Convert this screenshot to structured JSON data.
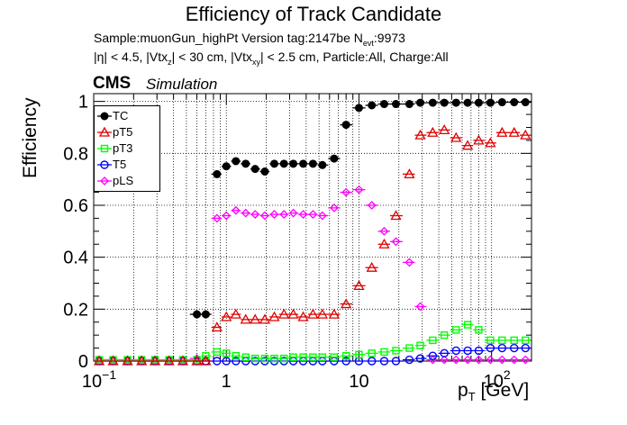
{
  "chart_data": {
    "type": "scatter",
    "title": "Efficiency of Track Candidate",
    "info_line1": "Sample:muonGun_highPt   Version tag:2147be  N",
    "info_line1_sub": "evt",
    "info_line1_tail": ":9973",
    "info_line2_parts": [
      "|η| < 4.5, |Vtx",
      "z",
      "| < 30 cm, |Vtx",
      "xy",
      "| < 2.5 cm, Particle:All, Charge:All"
    ],
    "cms_label": "CMS",
    "sim_label": "Simulation",
    "ylabel": "Efficiency",
    "xlabel_main": "p",
    "xlabel_sub": "T",
    "xlabel_tail": " [GeV]",
    "xscale": "log",
    "xlim": [
      0.1,
      200
    ],
    "ylim": [
      0,
      1.03
    ],
    "grid": true,
    "legend_placement": "top-left",
    "x_ticks": [
      {
        "value": 0.1,
        "label": "10",
        "sup": "−1"
      },
      {
        "value": 1,
        "label": "1",
        "sup": ""
      },
      {
        "value": 10,
        "label": "10",
        "sup": ""
      },
      {
        "value": 100,
        "label": "10",
        "sup": "2"
      }
    ],
    "y_ticks": [
      "0",
      "0.2",
      "0.4",
      "0.6",
      "0.8",
      "1"
    ],
    "bin_centers": [
      0.11,
      0.14,
      0.18,
      0.23,
      0.29,
      0.37,
      0.47,
      0.6,
      0.7,
      0.85,
      1.0,
      1.18,
      1.4,
      1.65,
      1.95,
      2.3,
      2.72,
      3.2,
      3.8,
      4.5,
      5.3,
      6.5,
      8.0,
      10.0,
      12.5,
      15.5,
      19,
      24,
      29,
      36,
      44,
      54,
      66,
      80,
      98,
      120,
      148,
      180
    ],
    "series": [
      {
        "name": "TC",
        "color": "#000000",
        "marker": "filled-circle",
        "values": [
          null,
          null,
          null,
          null,
          null,
          null,
          null,
          0.18,
          0.18,
          0.72,
          0.75,
          0.77,
          0.76,
          0.74,
          0.73,
          0.76,
          0.76,
          0.76,
          0.76,
          0.76,
          0.755,
          0.78,
          0.91,
          0.975,
          0.985,
          0.99,
          0.99,
          0.99,
          0.995,
          0.995,
          0.995,
          0.995,
          0.995,
          0.995,
          0.995,
          0.997,
          0.997,
          0.997
        ]
      },
      {
        "name": "pT5",
        "color": "#e00000",
        "marker": "open-triangle",
        "values": [
          0,
          0,
          0,
          0,
          0,
          0,
          0,
          0,
          0,
          0.13,
          0.17,
          0.18,
          0.16,
          0.16,
          0.16,
          0.17,
          0.18,
          0.18,
          0.17,
          0.18,
          0.18,
          0.18,
          0.22,
          0.29,
          0.36,
          0.45,
          0.56,
          0.72,
          0.87,
          0.88,
          0.89,
          0.86,
          0.83,
          0.85,
          0.84,
          0.88,
          0.88,
          0.87
        ]
      },
      {
        "name": "pT3",
        "color": "#00ff00",
        "marker": "open-square",
        "values": [
          0.005,
          0.005,
          0.005,
          0.005,
          0.005,
          0.005,
          0.005,
          0.005,
          0.02,
          0.035,
          0.03,
          0.02,
          0.015,
          0.01,
          0.01,
          0.01,
          0.01,
          0.015,
          0.015,
          0.015,
          0.015,
          0.015,
          0.02,
          0.025,
          0.03,
          0.035,
          0.04,
          0.05,
          0.06,
          0.08,
          0.1,
          0.12,
          0.14,
          0.12,
          0.08,
          0.08,
          0.08,
          0.08
        ]
      },
      {
        "name": "T5",
        "color": "#0000ff",
        "marker": "open-circle",
        "values": [
          0,
          0,
          0,
          0,
          0,
          0,
          0,
          0,
          0,
          0,
          0,
          0,
          0,
          0,
          0,
          0,
          0,
          0,
          0,
          0,
          0,
          0,
          0,
          0,
          0,
          0,
          0,
          0.005,
          0.01,
          0.02,
          0.03,
          0.04,
          0.04,
          0.04,
          0.05,
          0.05,
          0.05,
          0.05
        ]
      },
      {
        "name": "pLS",
        "color": "#ff00ff",
        "marker": "open-diamond",
        "values": [
          0.005,
          0.005,
          0.005,
          0.005,
          0.005,
          0.005,
          0.005,
          0.01,
          0.18,
          0.55,
          0.56,
          0.58,
          0.57,
          0.565,
          0.56,
          0.565,
          0.565,
          0.57,
          0.565,
          0.565,
          0.56,
          0.59,
          0.65,
          0.66,
          0.6,
          0.5,
          0.46,
          0.38,
          0.21,
          0.005,
          0.005,
          0.005,
          0.005,
          0.005,
          0.005,
          0.005,
          0.005,
          0.005
        ]
      }
    ]
  }
}
